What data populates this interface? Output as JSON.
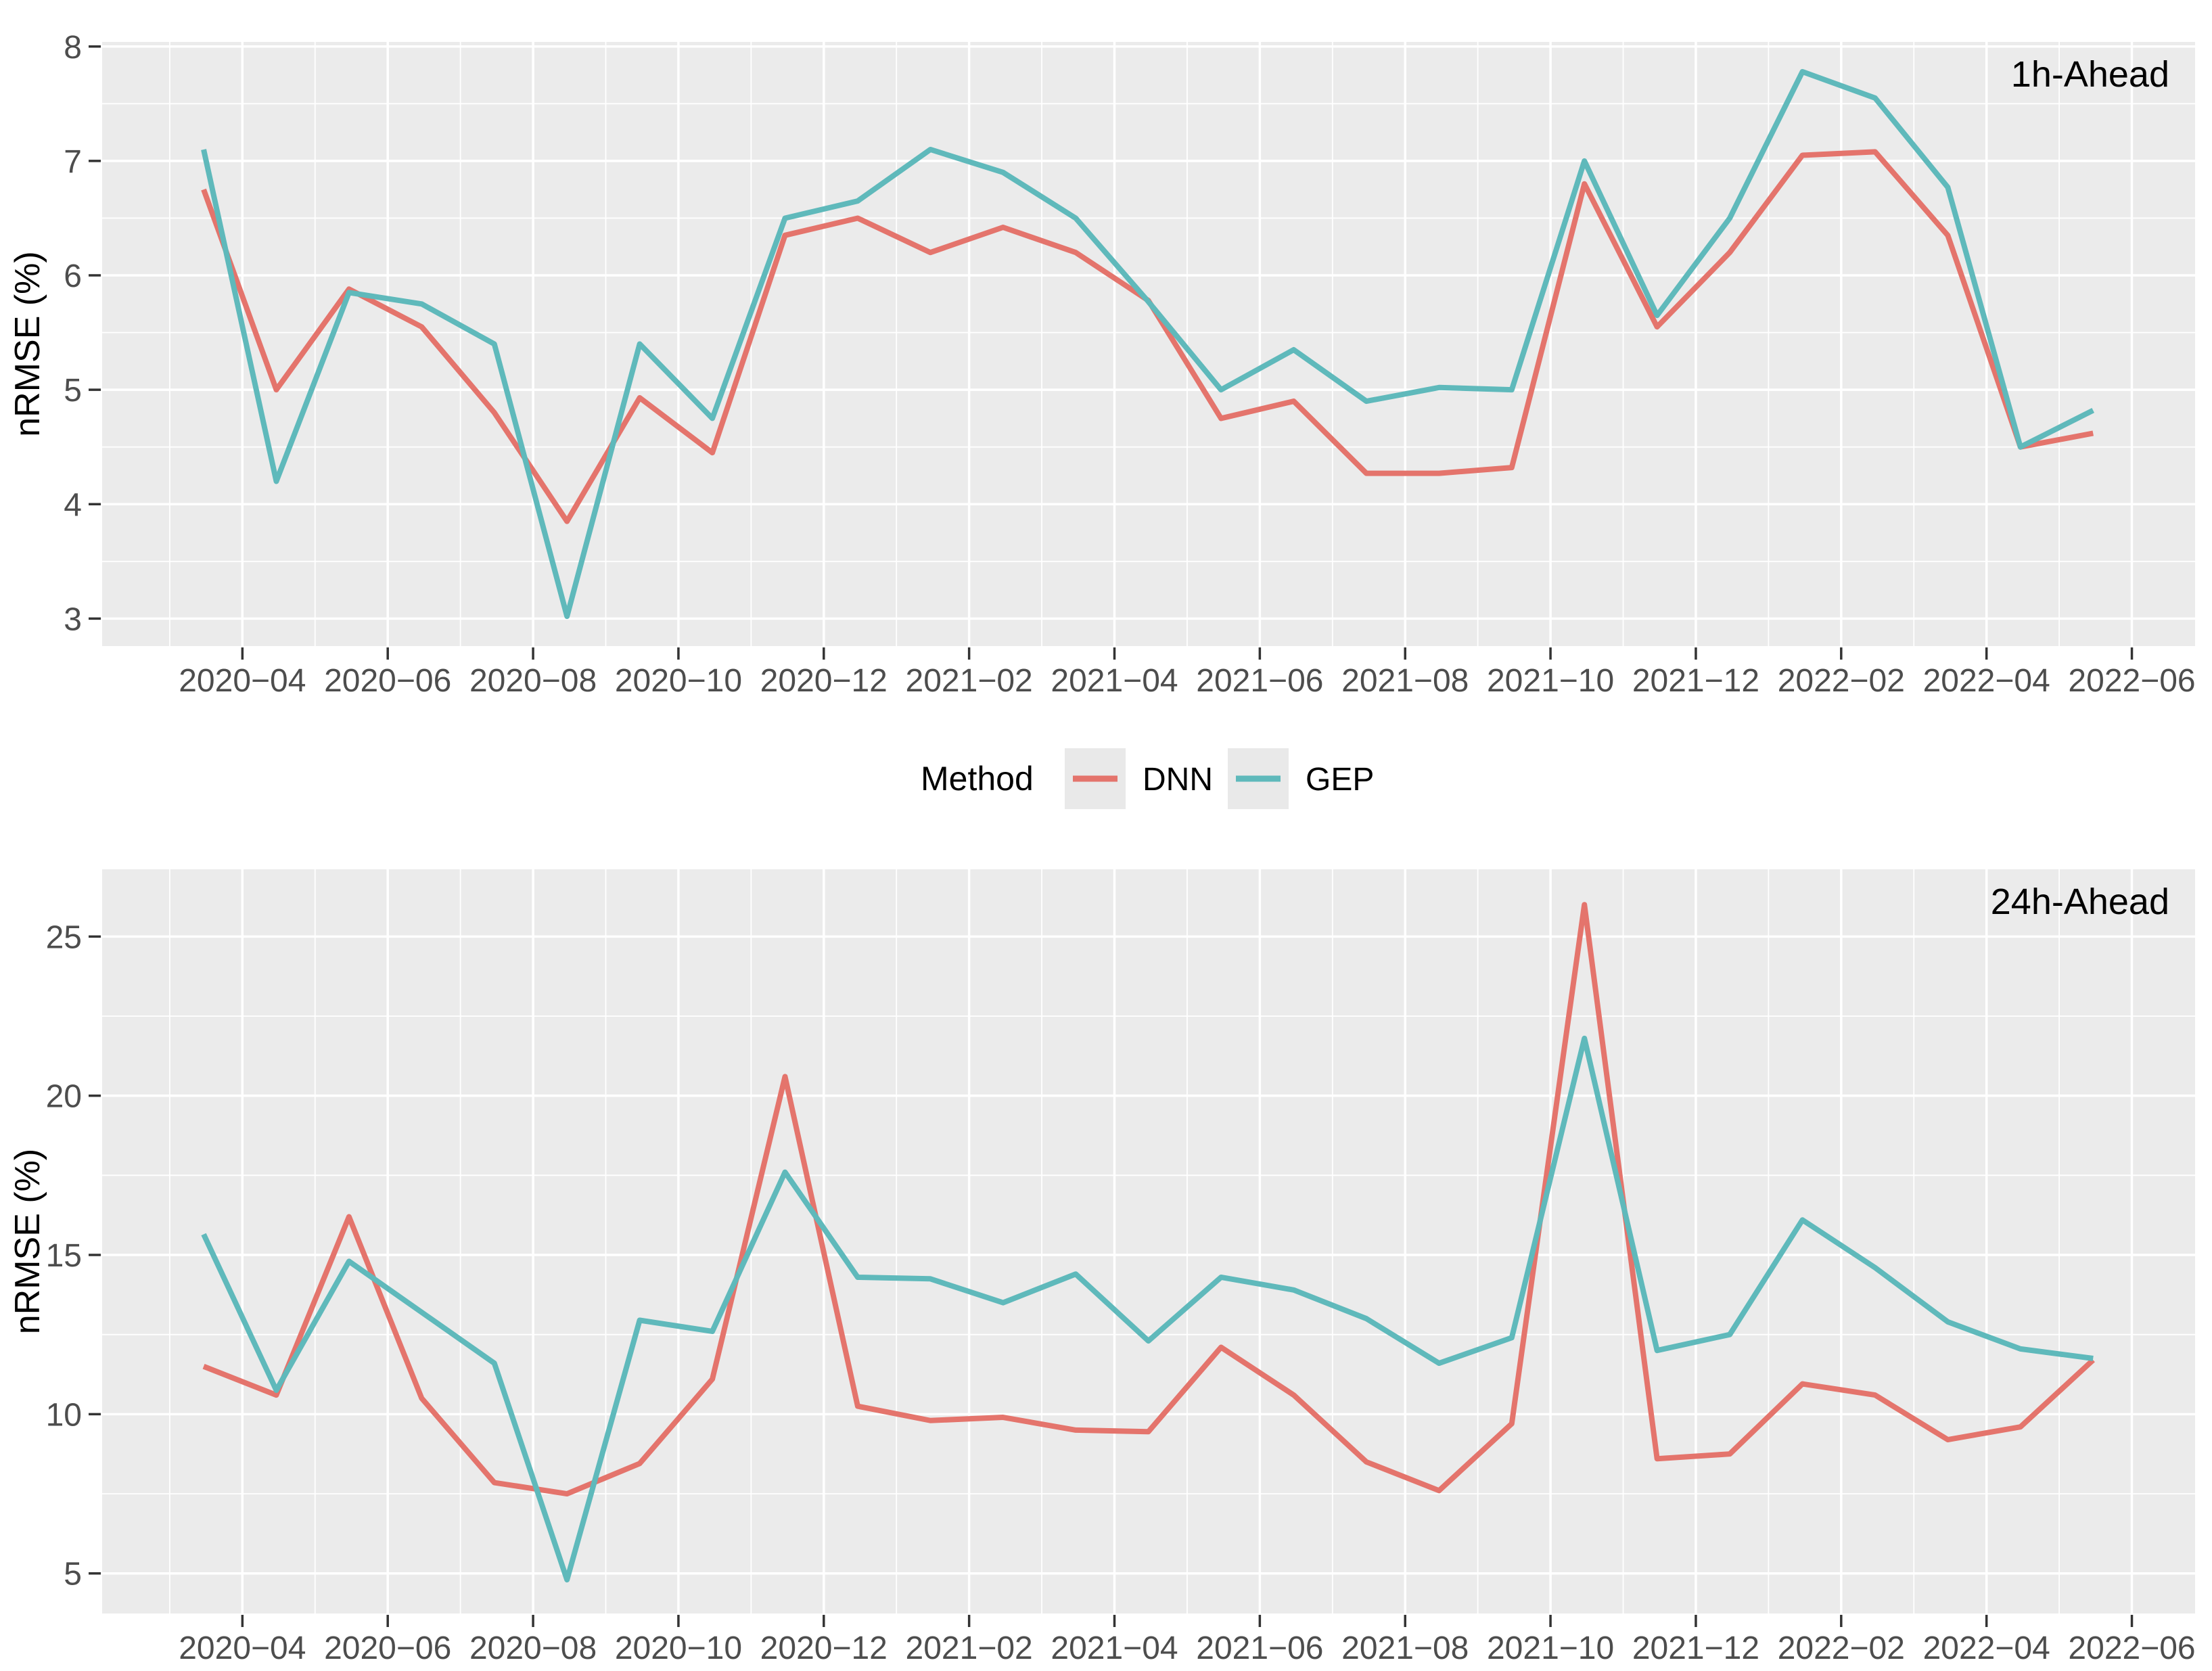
{
  "figure": {
    "background": "#ffffff",
    "panel_background": "#ebebeb",
    "gridline_color": "#ffffff",
    "tick_color": "#333333",
    "tick_label_color": "#4d4d4d"
  },
  "legend": {
    "title": "Method",
    "items": [
      {
        "label": "DNN",
        "color": "#e4746c"
      },
      {
        "label": "GEP",
        "color": "#5fb9bb"
      }
    ],
    "key_background": "#e9e9e9",
    "position": "between-panels-centered"
  },
  "chart_data": [
    {
      "type": "line",
      "title": "1h-Ahead",
      "xlabel": "",
      "ylabel": "nRMSE (%)",
      "grid": "on",
      "ylim": [
        2.76,
        8.04
      ],
      "yticks": [
        3,
        4,
        5,
        6,
        7,
        8
      ],
      "yticks_minor": [
        3.5,
        4.5,
        5.5,
        6.5,
        7.5
      ],
      "xtick_labels": [
        "2020−04",
        "2020−06",
        "2020−08",
        "2020−10",
        "2020−12",
        "2021−02",
        "2021−04",
        "2021−06",
        "2021−08",
        "2021−10",
        "2021−12",
        "2022−02",
        "2022−04",
        "2022−06"
      ],
      "x": [
        "2020-03",
        "2020-04",
        "2020-05",
        "2020-06",
        "2020-07",
        "2020-08",
        "2020-09",
        "2020-10",
        "2020-11",
        "2020-12",
        "2021-01",
        "2021-02",
        "2021-03",
        "2021-04",
        "2021-05",
        "2021-06",
        "2021-07",
        "2021-08",
        "2021-09",
        "2021-10",
        "2021-11",
        "2021-12",
        "2022-01",
        "2022-02",
        "2022-03",
        "2022-04",
        "2022-05"
      ],
      "series": [
        {
          "name": "DNN",
          "color": "#e4746c",
          "values": [
            6.75,
            5.0,
            5.88,
            5.55,
            4.8,
            3.85,
            4.93,
            4.45,
            6.35,
            6.5,
            6.2,
            6.42,
            6.2,
            5.78,
            4.75,
            4.9,
            4.27,
            4.27,
            4.32,
            6.8,
            5.55,
            6.2,
            7.05,
            7.08,
            6.35,
            4.5,
            4.62
          ]
        },
        {
          "name": "GEP",
          "color": "#5fb9bb",
          "values": [
            7.1,
            4.2,
            5.85,
            5.75,
            5.4,
            3.02,
            5.4,
            4.75,
            6.5,
            6.65,
            7.1,
            6.9,
            6.5,
            5.77,
            5.0,
            5.35,
            4.9,
            5.02,
            5.0,
            7.0,
            5.65,
            6.5,
            7.78,
            7.55,
            6.77,
            4.5,
            4.82
          ]
        }
      ]
    },
    {
      "type": "line",
      "title": "24h-Ahead",
      "xlabel": "",
      "ylabel": "nRMSE (%)",
      "grid": "on",
      "ylim": [
        3.74,
        27.11
      ],
      "yticks": [
        5,
        10,
        15,
        20,
        25
      ],
      "yticks_minor": [
        7.5,
        12.5,
        17.5,
        22.5
      ],
      "xtick_labels": [
        "2020−04",
        "2020−06",
        "2020−08",
        "2020−10",
        "2020−12",
        "2021−02",
        "2021−04",
        "2021−06",
        "2021−08",
        "2021−10",
        "2021−12",
        "2022−02",
        "2022−04",
        "2022−06"
      ],
      "x": [
        "2020-03",
        "2020-04",
        "2020-05",
        "2020-06",
        "2020-07",
        "2020-08",
        "2020-09",
        "2020-10",
        "2020-11",
        "2020-12",
        "2021-01",
        "2021-02",
        "2021-03",
        "2021-04",
        "2021-05",
        "2021-06",
        "2021-07",
        "2021-08",
        "2021-09",
        "2021-10",
        "2021-11",
        "2021-12",
        "2022-01",
        "2022-02",
        "2022-03",
        "2022-04",
        "2022-05"
      ],
      "series": [
        {
          "name": "DNN",
          "color": "#e4746c",
          "values": [
            11.5,
            10.6,
            16.2,
            10.5,
            7.85,
            7.5,
            8.45,
            11.1,
            20.6,
            10.25,
            9.8,
            9.9,
            9.5,
            9.45,
            12.1,
            10.6,
            8.5,
            7.6,
            9.7,
            26.0,
            8.6,
            8.75,
            10.95,
            10.6,
            9.2,
            9.6,
            11.7
          ]
        },
        {
          "name": "GEP",
          "color": "#5fb9bb",
          "values": [
            15.65,
            10.75,
            14.8,
            13.2,
            11.6,
            4.8,
            12.95,
            12.6,
            17.6,
            14.3,
            14.25,
            13.5,
            14.4,
            12.3,
            14.3,
            13.9,
            13.0,
            11.6,
            12.4,
            21.8,
            12.0,
            12.5,
            16.1,
            14.6,
            12.9,
            12.05,
            11.75
          ]
        }
      ]
    }
  ]
}
